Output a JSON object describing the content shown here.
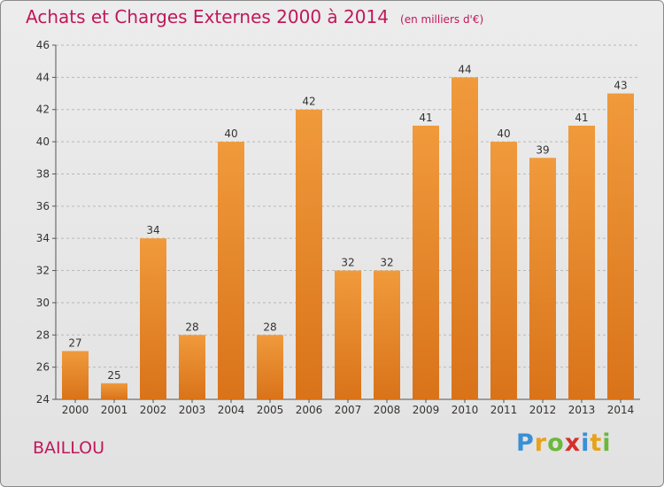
{
  "header": {
    "title": "Achats et Charges Externes 2000 à 2014",
    "unit": "(en milliers d'€)"
  },
  "commune": "BAILLOU",
  "brand": {
    "letters": [
      "P",
      "r",
      "o",
      "x",
      "i",
      "t",
      "i"
    ],
    "colors": [
      "#3a8fd6",
      "#e8a21a",
      "#6cb83c",
      "#d6302b",
      "#3a8fd6",
      "#e8a21a",
      "#6cb83c"
    ]
  },
  "chart_data": {
    "type": "bar",
    "categories": [
      "2000",
      "2001",
      "2002",
      "2003",
      "2004",
      "2005",
      "2006",
      "2007",
      "2008",
      "2009",
      "2010",
      "2011",
      "2012",
      "2013",
      "2014"
    ],
    "values": [
      27,
      25,
      34,
      28,
      40,
      28,
      42,
      32,
      32,
      41,
      44,
      40,
      39,
      41,
      43
    ],
    "ylim": [
      24,
      46
    ],
    "yticks": [
      24,
      26,
      28,
      30,
      32,
      34,
      36,
      38,
      40,
      42,
      44,
      46
    ],
    "grid": "horizontal dashed",
    "bar_color": "#f09a3c",
    "bar_color_dark": "#d9731a"
  }
}
